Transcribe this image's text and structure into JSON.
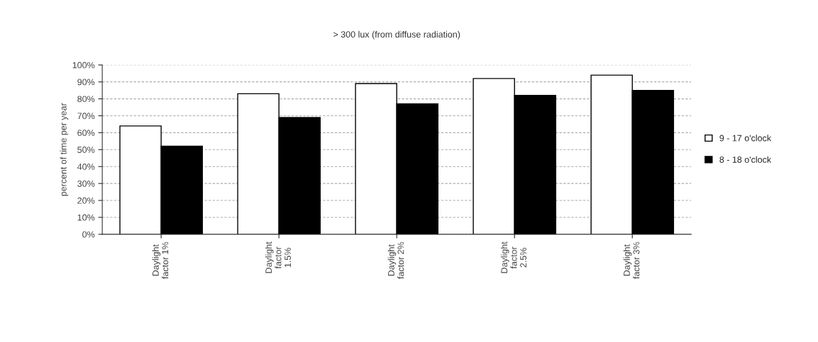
{
  "chart_data": {
    "type": "bar",
    "title": "> 300 lux (from diffuse radiation)",
    "ylabel": "percent of time per year",
    "categories": [
      "Daylight\nfactor 1%",
      "Daylight\nfactor\n1.5%",
      "Daylight\nfactor 2%",
      "Daylight\nfactor\n2.5%",
      "Daylight\nfactor 3%"
    ],
    "series": [
      {
        "name": "9 - 17 o'clock",
        "color": "#ffffff",
        "values": [
          64,
          83,
          89,
          92,
          94
        ]
      },
      {
        "name": "8 - 18 o'clock",
        "color": "#000000",
        "values": [
          52,
          69,
          77,
          82,
          85
        ]
      }
    ],
    "ylim": [
      0,
      100
    ],
    "yticks": [
      {
        "value": 0,
        "label": "0%"
      },
      {
        "value": 10,
        "label": "10%"
      },
      {
        "value": 20,
        "label": "20%"
      },
      {
        "value": 30,
        "label": "30%"
      },
      {
        "value": 40,
        "label": "40%"
      },
      {
        "value": 50,
        "label": "50%"
      },
      {
        "value": 60,
        "label": "60%"
      },
      {
        "value": 70,
        "label": "70%"
      },
      {
        "value": 80,
        "label": "80%"
      },
      {
        "value": 90,
        "label": "90%"
      },
      {
        "value": 100,
        "label": "100%"
      }
    ],
    "grid": "y",
    "legend": "right"
  }
}
